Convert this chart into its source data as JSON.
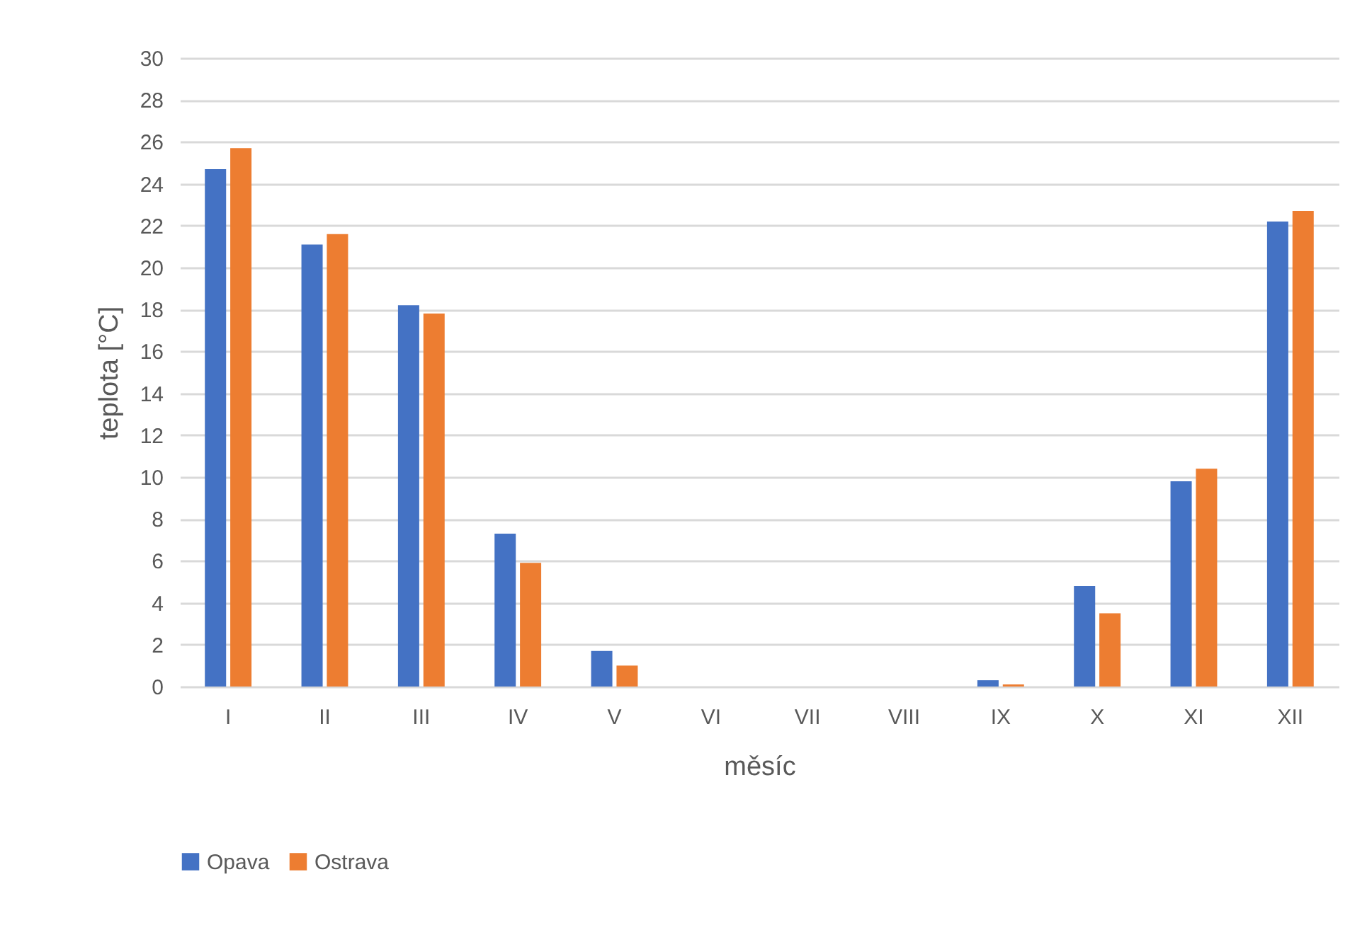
{
  "chart_data": {
    "type": "bar",
    "xlabel": "měsíc",
    "ylabel": "teplota [°C]",
    "categories": [
      "I",
      "II",
      "III",
      "IV",
      "V",
      "VI",
      "VII",
      "VIII",
      "IX",
      "X",
      "XI",
      "XII"
    ],
    "series": [
      {
        "name": "Opava",
        "color": "#4472c4",
        "values": [
          24.7,
          21.1,
          18.2,
          7.3,
          1.7,
          0,
          0,
          0,
          0.3,
          4.8,
          9.8,
          22.2
        ]
      },
      {
        "name": "Ostrava",
        "color": "#ed7d31",
        "values": [
          25.7,
          21.6,
          17.8,
          5.9,
          1.0,
          0,
          0,
          0,
          0.1,
          3.5,
          10.4,
          22.7
        ]
      }
    ],
    "ylim": [
      0,
      30
    ],
    "yticks": [
      0,
      2,
      4,
      6,
      8,
      10,
      12,
      14,
      16,
      18,
      20,
      22,
      24,
      26,
      28,
      30
    ],
    "grid": "y",
    "legend": "bottom"
  }
}
